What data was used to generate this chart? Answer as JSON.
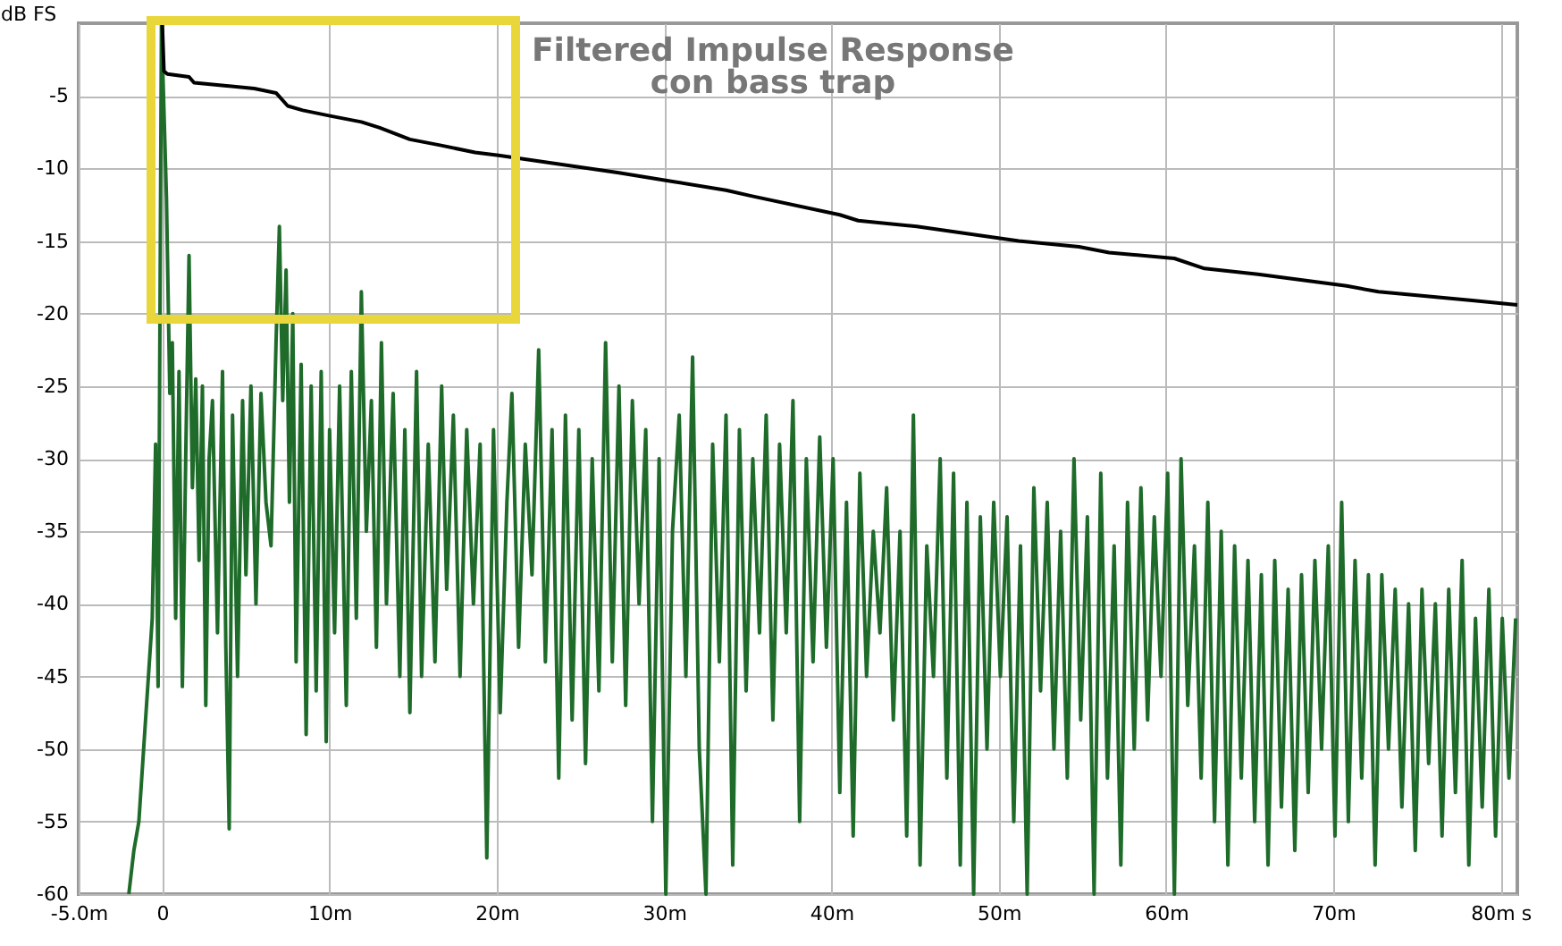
{
  "chart_data": {
    "type": "line",
    "title": "Filtered Impulse Response",
    "subtitle": "con bass trap",
    "ylabel": "dB FS",
    "xlim": [
      -5,
      81
    ],
    "xticks": [
      {
        "value": -5,
        "label": "-5.0m"
      },
      {
        "value": 0,
        "label": "0"
      },
      {
        "value": 10,
        "label": "10m"
      },
      {
        "value": 20,
        "label": "20m"
      },
      {
        "value": 30,
        "label": "30m"
      },
      {
        "value": 40,
        "label": "40m"
      },
      {
        "value": 50,
        "label": "50m"
      },
      {
        "value": 60,
        "label": "60m"
      },
      {
        "value": 70,
        "label": "70m"
      },
      {
        "value": 80,
        "label": "80m s"
      }
    ],
    "ylim": [
      -60,
      0
    ],
    "yticks": [
      -5,
      -10,
      -15,
      -20,
      -25,
      -30,
      -35,
      -40,
      -45,
      -50,
      -55,
      -60
    ],
    "grid": true,
    "series": [
      {
        "color": "#1e6b2a",
        "x": [
          -2.0,
          -1.7,
          -1.4,
          -1.0,
          -0.6,
          -0.4,
          -0.25,
          -0.05,
          0.25,
          0.45,
          0.6,
          0.8,
          1.0,
          1.2,
          1.4,
          1.6,
          1.8,
          2.0,
          2.2,
          2.4,
          2.6,
          2.8,
          3.0,
          3.3,
          3.6,
          3.8,
          4.0,
          4.2,
          4.5,
          4.8,
          5.0,
          5.3,
          5.6,
          5.9,
          6.2,
          6.5,
          6.8,
          7.0,
          7.2,
          7.4,
          7.6,
          7.8,
          8.0,
          8.3,
          8.6,
          8.9,
          9.2,
          9.5,
          9.8,
          10.0,
          10.3,
          10.6,
          11.0,
          11.3,
          11.6,
          11.9,
          12.2,
          12.5,
          12.8,
          13.1,
          13.4,
          13.8,
          14.2,
          14.5,
          14.8,
          15.2,
          15.5,
          15.9,
          16.3,
          16.7,
          17.0,
          17.4,
          17.8,
          18.2,
          18.6,
          19.0,
          19.4,
          19.8,
          20.2,
          20.6,
          20.9,
          21.3,
          21.7,
          22.1,
          22.5,
          22.9,
          23.3,
          23.7,
          24.1,
          24.5,
          24.9,
          25.3,
          25.7,
          26.1,
          26.5,
          26.9,
          27.3,
          27.7,
          28.1,
          28.5,
          28.9,
          29.3,
          29.7,
          30.1,
          30.5,
          30.9,
          31.3,
          31.7,
          32.1,
          32.5,
          32.9,
          33.3,
          33.7,
          34.1,
          34.5,
          34.9,
          35.3,
          35.7,
          36.1,
          36.5,
          36.9,
          37.3,
          37.7,
          38.1,
          38.5,
          38.9,
          39.3,
          39.7,
          40.1,
          40.5,
          40.9,
          41.3,
          41.7,
          42.1,
          42.5,
          42.9,
          43.3,
          43.7,
          44.1,
          44.5,
          44.9,
          45.3,
          45.7,
          46.1,
          46.5,
          46.9,
          47.3,
          47.7,
          48.1,
          48.5,
          48.9,
          49.3,
          49.7,
          50.1,
          50.5,
          50.9,
          51.3,
          51.7,
          52.1,
          52.5,
          52.9,
          53.3,
          53.7,
          54.1,
          54.5,
          54.9,
          55.3,
          55.7,
          56.1,
          56.5,
          56.9,
          57.3,
          57.7,
          58.1,
          58.5,
          58.9,
          59.3,
          59.7,
          60.1,
          60.5,
          60.9,
          61.3,
          61.7,
          62.1,
          62.5,
          62.9,
          63.3,
          63.7,
          64.1,
          64.5,
          64.9,
          65.3,
          65.7,
          66.1,
          66.5,
          66.9,
          67.3,
          67.7,
          68.1,
          68.5,
          68.9,
          69.3,
          69.7,
          70.1,
          70.5,
          70.9,
          71.3,
          71.7,
          72.1,
          72.5,
          72.9,
          73.3,
          73.7,
          74.1,
          74.5,
          74.9,
          75.3,
          75.7,
          76.1,
          76.5,
          76.9,
          77.3,
          77.7,
          78.1,
          78.5,
          78.9,
          79.3,
          79.7,
          80.1,
          80.5,
          80.9
        ],
        "values": [
          -60,
          -57,
          -55,
          -48,
          -41,
          -29,
          -45.7,
          0,
          -12,
          -25.5,
          -22,
          -41,
          -24,
          -45.7,
          -30,
          -16,
          -32,
          -24.5,
          -37,
          -25,
          -47,
          -30,
          -26,
          -42,
          -24,
          -43,
          -55.5,
          -27,
          -45,
          -26,
          -38,
          -25,
          -40,
          -25.5,
          -33,
          -36,
          -22,
          -14,
          -26,
          -17,
          -33,
          -20,
          -44,
          -23.5,
          -49,
          -25,
          -46,
          -24,
          -49.5,
          -28,
          -42,
          -25,
          -47,
          -24,
          -41,
          -18.5,
          -35,
          -26,
          -43,
          -22,
          -40,
          -25.5,
          -45,
          -28,
          -47.5,
          -24,
          -45,
          -29,
          -44,
          -25,
          -39,
          -27,
          -45,
          -28,
          -40,
          -29,
          -57.5,
          -28,
          -47.5,
          -33,
          -25.5,
          -43,
          -29,
          -38,
          -22.5,
          -44,
          -28,
          -52,
          -27,
          -48,
          -28,
          -51,
          -30,
          -46,
          -22,
          -44,
          -25,
          -47,
          -26,
          -40,
          -28,
          -55,
          -30,
          -60,
          -35,
          -27,
          -45,
          -23,
          -50,
          -60,
          -29,
          -44,
          -27,
          -58,
          -28,
          -46,
          -30,
          -42,
          -27,
          -48,
          -29,
          -42,
          -26,
          -55,
          -30,
          -44,
          -28.5,
          -43,
          -30,
          -53,
          -33,
          -56,
          -31,
          -45,
          -35,
          -42,
          -32,
          -48,
          -35,
          -56,
          -27,
          -58,
          -36,
          -45,
          -30,
          -52,
          -31,
          -58,
          -33,
          -60,
          -34,
          -50,
          -33,
          -45,
          -34,
          -55,
          -36,
          -60,
          -32,
          -46,
          -33,
          -50,
          -35,
          -52,
          -30,
          -48,
          -34,
          -60,
          -31,
          -52,
          -36,
          -58,
          -33,
          -50,
          -32,
          -48,
          -34,
          -45,
          -31,
          -60,
          -30,
          -47,
          -36,
          -52,
          -33,
          -55,
          -35,
          -58,
          -36,
          -52,
          -37,
          -55,
          -38,
          -58,
          -37,
          -54,
          -39,
          -57,
          -38,
          -53,
          -37,
          -50,
          -36,
          -56,
          -33,
          -55,
          -37,
          -52,
          -38,
          -58,
          -38,
          -50,
          -39,
          -54,
          -40,
          -57,
          -39,
          -51,
          -40,
          -56,
          -39,
          -53,
          -37,
          -58,
          -41,
          -54,
          -39,
          -56,
          -41,
          -52,
          -41
        ]
      },
      {
        "color": "#000000",
        "x": [
          0,
          0.1,
          0.3,
          1.6,
          1.9,
          3.7,
          5.5,
          6.8,
          7.5,
          8.4,
          10.1,
          11.9,
          13,
          14.8,
          16.6,
          18.7,
          20.1,
          27.3,
          30.5,
          33.7,
          35.2,
          40.5,
          41.6,
          45.1,
          51.2,
          54.8,
          56.6,
          60.5,
          62.3,
          65.5,
          70.8,
          72.7,
          78.3,
          81
        ],
        "values": [
          0,
          -3.3,
          -3.5,
          -3.7,
          -4.1,
          -4.3,
          -4.5,
          -4.8,
          -5.7,
          -6.0,
          -6.4,
          -6.8,
          -7.2,
          -8.0,
          -8.4,
          -8.9,
          -9.1,
          -10.3,
          -10.9,
          -11.5,
          -11.9,
          -13.2,
          -13.6,
          -14.0,
          -15.0,
          -15.4,
          -15.8,
          -16.2,
          -16.9,
          -17.3,
          -18.1,
          -18.5,
          -19.1,
          -19.4
        ]
      }
    ]
  }
}
